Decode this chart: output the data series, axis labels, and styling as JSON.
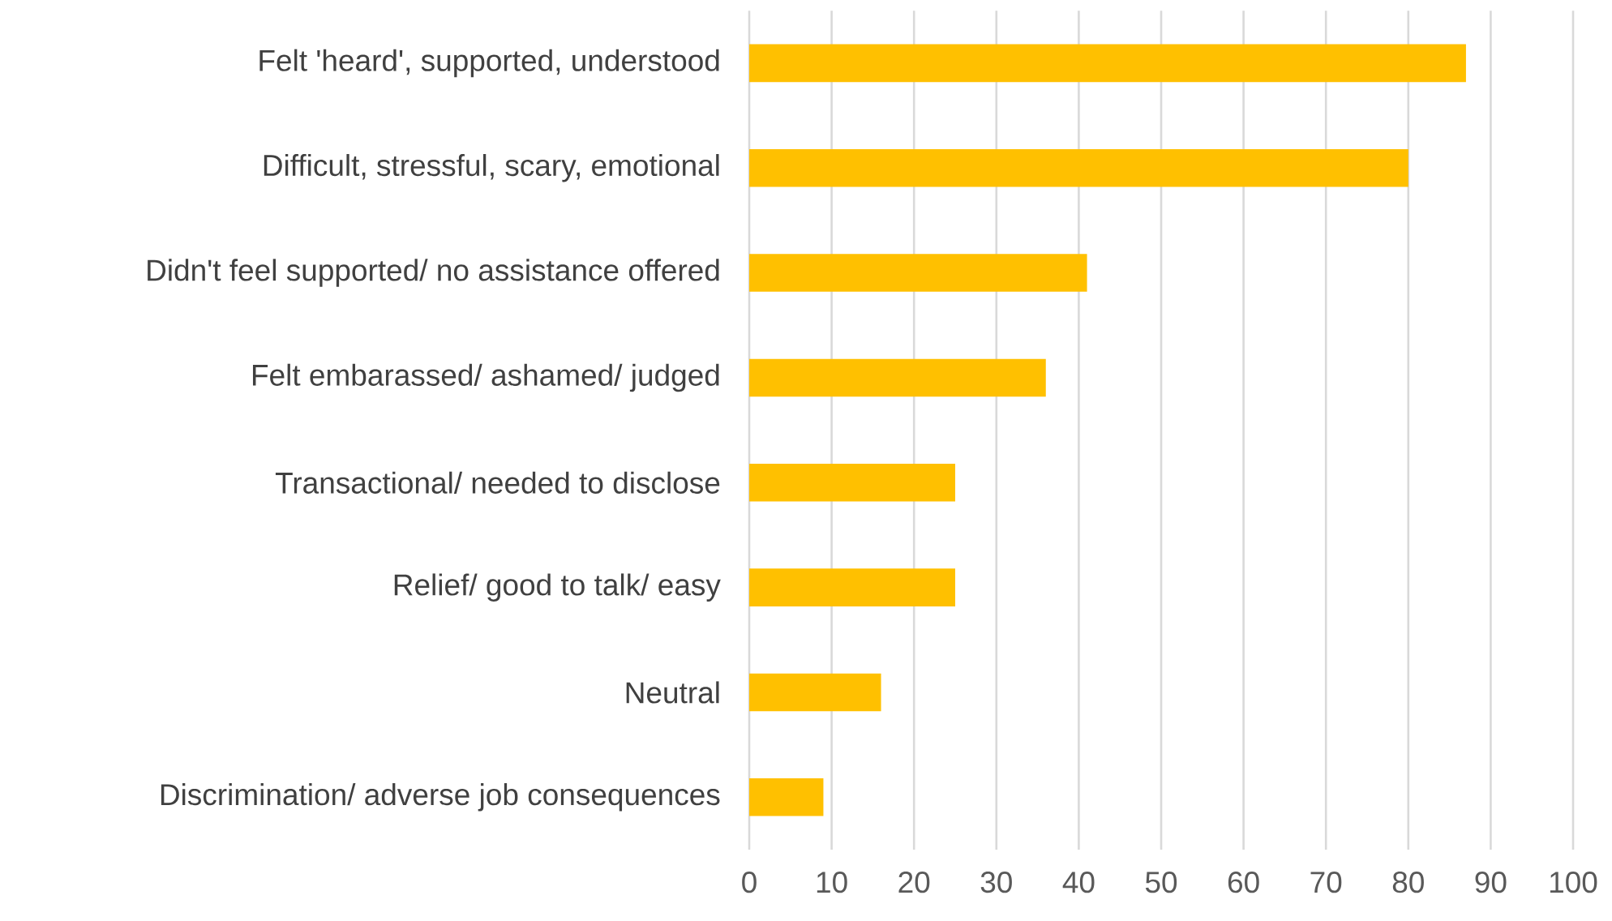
{
  "chart_data": {
    "type": "bar",
    "orientation": "horizontal",
    "categories": [
      "Felt 'heard', supported, understood",
      "Difficult, stressful, scary, emotional",
      "Didn't feel supported/ no assistance offered",
      "Felt embarassed/ ashamed/ judged",
      "Transactional/ needed to disclose",
      "Relief/ good to talk/ easy",
      "Neutral",
      "Discrimination/ adverse job consequences"
    ],
    "values": [
      87,
      80,
      41,
      36,
      25,
      25,
      16,
      9
    ],
    "color": "#ffc000",
    "xlim": [
      0,
      100
    ],
    "xticks": [
      0,
      10,
      20,
      30,
      40,
      50,
      60,
      70,
      80,
      90,
      100
    ],
    "grid": "x"
  }
}
